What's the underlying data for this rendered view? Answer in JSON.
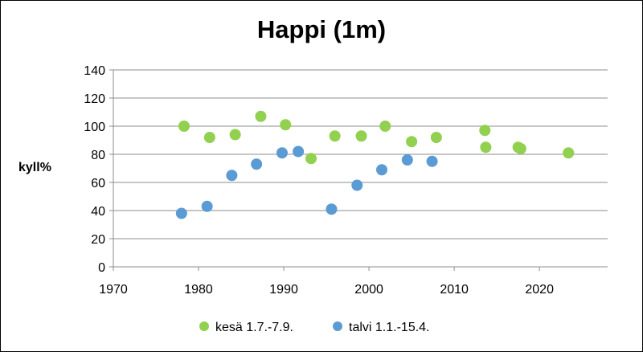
{
  "chart_data": {
    "type": "scatter",
    "title": "Happi (1m)",
    "xlabel": "",
    "ylabel": "kyll%",
    "xlim": [
      1970,
      2028
    ],
    "ylim": [
      0,
      140
    ],
    "xticks": [
      1970,
      1980,
      1990,
      2000,
      2010,
      2020
    ],
    "yticks": [
      0,
      20,
      40,
      60,
      80,
      100,
      120,
      140
    ],
    "grid": "horizontal",
    "legend_position": "bottom",
    "series": [
      {
        "name": "kesä 1.7.-7.9.",
        "color": "#92D050",
        "points": [
          {
            "x": 1978.3,
            "y": 100
          },
          {
            "x": 1981.3,
            "y": 92
          },
          {
            "x": 1984.3,
            "y": 94
          },
          {
            "x": 1987.3,
            "y": 107
          },
          {
            "x": 1990.2,
            "y": 101
          },
          {
            "x": 1993.2,
            "y": 77
          },
          {
            "x": 1996.0,
            "y": 93
          },
          {
            "x": 1999.1,
            "y": 93
          },
          {
            "x": 2001.9,
            "y": 100
          },
          {
            "x": 2005.0,
            "y": 89
          },
          {
            "x": 2007.9,
            "y": 92
          },
          {
            "x": 2013.6,
            "y": 97
          },
          {
            "x": 2013.7,
            "y": 85
          },
          {
            "x": 2017.5,
            "y": 85
          },
          {
            "x": 2017.8,
            "y": 84
          },
          {
            "x": 2023.4,
            "y": 81
          }
        ]
      },
      {
        "name": "talvi 1.1.-15.4.",
        "color": "#5B9BD5",
        "points": [
          {
            "x": 1978.0,
            "y": 38
          },
          {
            "x": 1981.0,
            "y": 43
          },
          {
            "x": 1983.9,
            "y": 65
          },
          {
            "x": 1986.8,
            "y": 73
          },
          {
            "x": 1989.8,
            "y": 81
          },
          {
            "x": 1991.7,
            "y": 82
          },
          {
            "x": 1995.6,
            "y": 41
          },
          {
            "x": 1998.6,
            "y": 58
          },
          {
            "x": 2001.5,
            "y": 69
          },
          {
            "x": 2004.5,
            "y": 76
          },
          {
            "x": 2007.4,
            "y": 75
          }
        ]
      }
    ]
  }
}
